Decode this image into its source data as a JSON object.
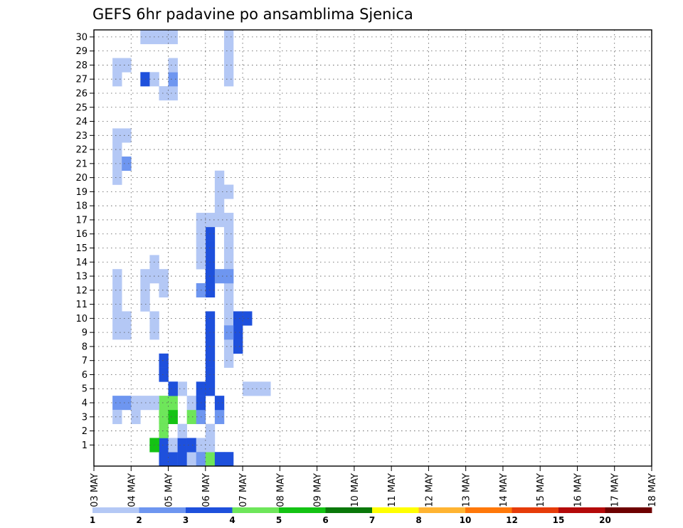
{
  "chart_data": {
    "type": "heatmap",
    "title": "GEFS 6hr padavine po ansamblima Sjenica",
    "xlabel": "",
    "ylabel": "",
    "y_categories": [
      "1",
      "2",
      "3",
      "4",
      "5",
      "6",
      "7",
      "8",
      "9",
      "10",
      "11",
      "12",
      "13",
      "14",
      "15",
      "16",
      "17",
      "18",
      "19",
      "20",
      "21",
      "22",
      "23",
      "24",
      "25",
      "26",
      "27",
      "28",
      "29",
      "30"
    ],
    "x_tick_labels": [
      "03 MAY",
      "04 MAY",
      "05 MAY",
      "06 MAY",
      "07 MAY",
      "08 MAY",
      "09 MAY",
      "10 MAY",
      "11 MAY",
      "12 MAY",
      "13 MAY",
      "14 MAY",
      "15 MAY",
      "16 MAY",
      "17 MAY",
      "18 MAY"
    ],
    "x_unit": "6-hour step",
    "x_steps_total": 60,
    "grid": true,
    "legend": {
      "placement": "bottom",
      "levels": [
        "1",
        "2",
        "3",
        "4",
        "5",
        "6",
        "7",
        "8",
        "10",
        "12",
        "15",
        "20"
      ],
      "colors": [
        "#b4c8f5",
        "#6e96f0",
        "#1e50dc",
        "#6ee65a",
        "#14c314",
        "#0a780a",
        "#ffff00",
        "#ffb432",
        "#ff780a",
        "#e63c0a",
        "#b40a0a",
        "#6e0000"
      ]
    },
    "colors": {
      "1": "#b4c8f5",
      "2": "#6e96f0",
      "3": "#1e50dc",
      "4": "#6ee65a",
      "5": "#14c314",
      "6": "#0a780a",
      "7": "#ffff00",
      "8": "#ffb432",
      "10": "#ff780a",
      "12": "#e63c0a",
      "15": "#b40a0a",
      "20": "#6e0000"
    },
    "value_levels": [
      "1",
      "2",
      "3",
      "4",
      "5",
      "6",
      "7",
      "8",
      "10",
      "12",
      "15",
      "20"
    ],
    "cells": [
      [
        7,
        0,
        3
      ],
      [
        7,
        1,
        3
      ],
      [
        7,
        2,
        4
      ],
      [
        7,
        3,
        5
      ],
      [
        8,
        0,
        3
      ],
      [
        8,
        1,
        1
      ],
      [
        9,
        0,
        3
      ],
      [
        9,
        1,
        3
      ],
      [
        9,
        2,
        1
      ],
      [
        6,
        1,
        5
      ],
      [
        6,
        1,
        5
      ],
      [
        10,
        0,
        1
      ],
      [
        10,
        1,
        3
      ],
      [
        11,
        1,
        1
      ],
      [
        10,
        3,
        4
      ],
      [
        10,
        4,
        1
      ],
      [
        11,
        3,
        2
      ],
      [
        11,
        0,
        2
      ],
      [
        12,
        0,
        4
      ],
      [
        12,
        1,
        1
      ],
      [
        12,
        2,
        1
      ],
      [
        13,
        0,
        3
      ],
      [
        13,
        3,
        2
      ],
      [
        14,
        0,
        3
      ],
      [
        7,
        3,
        4
      ],
      [
        7,
        4,
        4
      ],
      [
        8,
        3,
        5
      ],
      [
        8,
        4,
        4
      ],
      [
        18,
        5,
        1
      ],
      [
        17,
        5,
        1
      ],
      [
        16,
        5,
        1
      ],
      [
        8,
        5,
        3
      ],
      [
        9,
        5,
        1
      ],
      [
        2,
        4,
        2
      ],
      [
        3,
        4,
        2
      ],
      [
        2,
        3,
        1
      ],
      [
        2,
        13,
        1
      ],
      [
        2,
        12,
        1
      ],
      [
        2,
        11,
        1
      ],
      [
        2,
        10,
        1
      ],
      [
        3,
        10,
        1
      ],
      [
        2,
        9,
        1
      ],
      [
        3,
        9,
        1
      ],
      [
        2,
        22,
        1
      ],
      [
        2,
        21,
        1
      ],
      [
        2,
        20,
        1
      ],
      [
        3,
        21,
        2
      ],
      [
        2,
        23,
        1
      ],
      [
        3,
        23,
        1
      ],
      [
        2,
        27,
        1
      ],
      [
        2,
        28,
        1
      ],
      [
        3,
        28,
        1
      ],
      [
        5,
        27,
        3
      ],
      [
        6,
        27,
        1
      ],
      [
        7,
        26,
        1
      ],
      [
        8,
        26,
        1
      ],
      [
        8,
        27,
        2
      ],
      [
        8,
        28,
        1
      ],
      [
        5,
        30,
        1
      ],
      [
        6,
        30,
        1
      ],
      [
        7,
        30,
        1
      ],
      [
        8,
        30,
        1
      ],
      [
        14,
        30,
        1
      ],
      [
        14,
        29,
        1
      ],
      [
        14,
        28,
        1
      ],
      [
        14,
        27,
        1
      ],
      [
        14,
        19,
        1
      ],
      [
        14,
        10,
        1
      ],
      [
        14,
        9,
        1
      ],
      [
        14,
        7,
        1
      ],
      [
        14,
        8,
        1
      ],
      [
        14,
        11,
        1
      ],
      [
        14,
        12,
        1
      ],
      [
        14,
        13,
        1
      ],
      [
        14,
        14,
        1
      ],
      [
        14,
        15,
        1
      ],
      [
        14,
        16,
        1
      ],
      [
        14,
        17,
        1
      ],
      [
        4,
        4,
        1
      ],
      [
        5,
        4,
        1
      ],
      [
        6,
        4,
        1
      ],
      [
        4,
        3,
        1
      ],
      [
        12,
        12,
        3
      ],
      [
        12,
        13,
        3
      ],
      [
        12,
        14,
        3
      ],
      [
        12,
        15,
        3
      ],
      [
        12,
        16,
        3
      ],
      [
        12,
        10,
        3
      ],
      [
        12,
        9,
        3
      ],
      [
        12,
        8,
        3
      ],
      [
        12,
        7,
        3
      ],
      [
        12,
        6,
        3
      ],
      [
        12,
        5,
        3
      ],
      [
        11,
        5,
        3
      ],
      [
        11,
        4,
        3
      ],
      [
        13,
        4,
        3
      ],
      [
        8,
        5,
        3
      ],
      [
        7,
        6,
        3
      ],
      [
        7,
        7,
        3
      ],
      [
        6,
        9,
        1
      ],
      [
        6,
        10,
        1
      ],
      [
        5,
        11,
        1
      ],
      [
        5,
        12,
        1
      ],
      [
        5,
        13,
        1
      ],
      [
        11,
        14,
        1
      ],
      [
        11,
        15,
        1
      ],
      [
        11,
        16,
        1
      ],
      [
        11,
        17,
        1
      ],
      [
        12,
        17,
        1
      ],
      [
        13,
        17,
        1
      ],
      [
        13,
        18,
        1
      ],
      [
        13,
        19,
        1
      ],
      [
        13,
        20,
        1
      ],
      [
        11,
        12,
        2
      ],
      [
        13,
        13,
        2
      ],
      [
        14,
        13,
        2
      ],
      [
        15,
        10,
        3
      ],
      [
        16,
        10,
        3
      ],
      [
        15,
        9,
        3
      ],
      [
        15,
        8,
        3
      ],
      [
        14,
        9,
        2
      ],
      [
        7,
        13,
        1
      ],
      [
        7,
        12,
        1
      ],
      [
        6,
        14,
        1
      ],
      [
        6,
        13,
        1
      ]
    ]
  }
}
